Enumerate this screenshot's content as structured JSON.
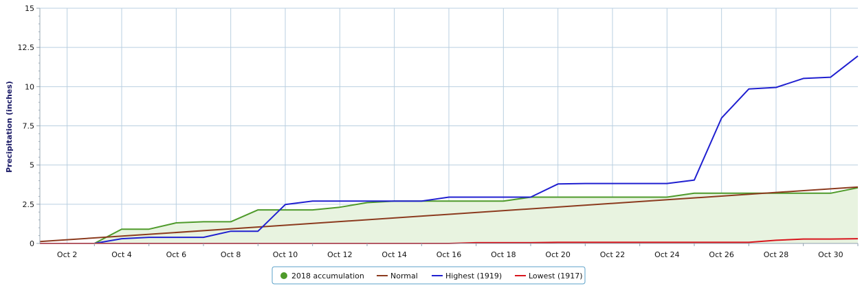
{
  "chart_data": {
    "type": "line",
    "ylabel": "Precipitation (inches)",
    "xlabel": "",
    "title": "",
    "ylim": [
      0,
      15
    ],
    "xlim": [
      1,
      31
    ],
    "y_ticks": [
      0,
      2.5,
      5,
      7.5,
      10,
      12.5,
      15
    ],
    "y_tick_labels": [
      "0",
      "2.5",
      "5",
      "7.5",
      "10",
      "12.5",
      "15"
    ],
    "x_ticks": [
      2,
      4,
      6,
      8,
      10,
      12,
      14,
      16,
      18,
      20,
      22,
      24,
      26,
      28,
      30
    ],
    "x_tick_labels": [
      "Oct 2",
      "Oct 4",
      "Oct 6",
      "Oct 8",
      "Oct 10",
      "Oct 12",
      "Oct 14",
      "Oct 16",
      "Oct 18",
      "Oct 20",
      "Oct 22",
      "Oct 24",
      "Oct 26",
      "Oct 28",
      "Oct 30"
    ],
    "grid": true,
    "legend_position": "bottom-center",
    "series": [
      {
        "name": "2018 accumulation",
        "color": "#4e9a2a",
        "fill": "#e8f3e0",
        "style": "area",
        "legend_marker": "circle",
        "x": [
          1,
          2,
          3,
          4,
          5,
          6,
          7,
          8,
          9,
          10,
          11,
          12,
          13,
          14,
          15,
          16,
          17,
          18,
          19,
          20,
          21,
          22,
          23,
          24,
          25,
          26,
          27,
          28,
          29,
          30,
          31
        ],
        "y": [
          0,
          0,
          0,
          0.91,
          0.91,
          1.31,
          1.38,
          1.38,
          2.14,
          2.14,
          2.14,
          2.31,
          2.6,
          2.7,
          2.7,
          2.7,
          2.7,
          2.7,
          2.95,
          2.95,
          2.95,
          2.95,
          2.95,
          2.95,
          3.2,
          3.2,
          3.2,
          3.2,
          3.2,
          3.2,
          3.55
        ]
      },
      {
        "name": "Normal",
        "color": "#8b3a1e",
        "style": "line",
        "legend_marker": "line",
        "x": [
          1,
          31
        ],
        "y": [
          0.12,
          3.6
        ]
      },
      {
        "name": "Highest (1919)",
        "color": "#1f1fd0",
        "style": "line",
        "legend_marker": "line",
        "x": [
          1,
          2,
          3,
          4,
          5,
          6,
          7,
          8,
          9,
          10,
          11,
          12,
          13,
          14,
          15,
          16,
          17,
          18,
          19,
          20,
          21,
          22,
          23,
          24,
          25,
          26,
          27,
          28,
          29,
          30,
          31
        ],
        "y": [
          0,
          0,
          0,
          0.3,
          0.39,
          0.39,
          0.39,
          0.78,
          0.78,
          2.48,
          2.7,
          2.7,
          2.7,
          2.7,
          2.7,
          2.95,
          2.95,
          2.95,
          2.95,
          3.79,
          3.82,
          3.82,
          3.82,
          3.82,
          4.04,
          8.0,
          9.85,
          9.95,
          10.52,
          10.6,
          11.95
        ]
      },
      {
        "name": "Lowest (1917)",
        "color": "#d8141c",
        "style": "line",
        "legend_marker": "line",
        "x": [
          1,
          2,
          3,
          4,
          5,
          6,
          7,
          8,
          9,
          10,
          11,
          12,
          13,
          14,
          15,
          16,
          17,
          18,
          19,
          20,
          21,
          22,
          23,
          24,
          25,
          26,
          27,
          28,
          29,
          30,
          31
        ],
        "y": [
          0,
          0,
          0,
          0,
          0,
          0,
          0,
          0,
          0,
          0,
          0,
          0,
          0,
          0,
          0,
          0,
          0.05,
          0.05,
          0.05,
          0.07,
          0.07,
          0.07,
          0.07,
          0.07,
          0.07,
          0.07,
          0.07,
          0.2,
          0.28,
          0.28,
          0.3
        ]
      }
    ]
  },
  "legend": {
    "items": [
      {
        "label": "2018 accumulation"
      },
      {
        "label": "Normal"
      },
      {
        "label": "Highest (1919)"
      },
      {
        "label": "Lowest (1917)"
      }
    ]
  }
}
